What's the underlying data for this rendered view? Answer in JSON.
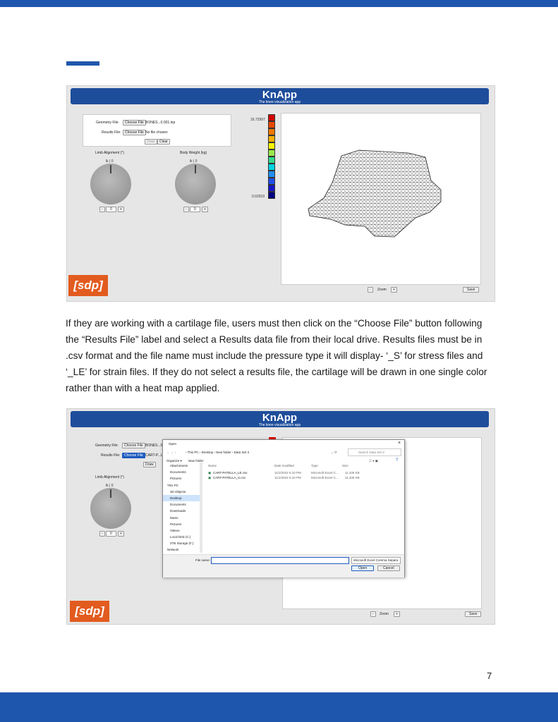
{
  "page_number": "7",
  "paragraph": "If they are working with a cartilage file, users must then click on the “Choose File” button following the “Results File” label and select a Results data file from their local drive. Results files must be in .csv format and the file name must include the pressure type it will display- ‘_S’ for stress files and ‘_LE’ for strain files. If they do not select a results file, the cartilage will be drawn in one single color rather than with a heat map applied.",
  "app": {
    "title": "KnApp",
    "subtitle": "The knee visualization app",
    "logo_text": "[sdp]",
    "geometry_label": "Geometry File:",
    "results_label": "Results File:",
    "choose_file": "Choose File",
    "draw": "Draw",
    "clear": "Clear",
    "limb_alignment": "Limb Alignment (°)",
    "body_weight": "Body Weight (kg)",
    "zoom": "Zoom",
    "minus": "-",
    "plus": "+",
    "save": "Save",
    "stepper_value": "0",
    "knob_ticks": "lk | 0"
  },
  "shot1": {
    "geometry_file": "BONES...0.001.inp",
    "results_file": "No file chosen",
    "legend_max": "16.72997",
    "legend_min": "0.02919",
    "legend_colors": [
      "#d40000",
      "#e84a00",
      "#f07800",
      "#f5b000",
      "#f5f500",
      "#9be84a",
      "#35d98a",
      "#00d4e0",
      "#1f8ff0",
      "#1f4fe8",
      "#1515c8",
      "#000080"
    ]
  },
  "shot2": {
    "geometry_file": "BONES...0(",
    "results_file": "CART-P...LE",
    "dialog": {
      "title": "Open",
      "close": "×",
      "breadcrumb": "› This PC › Desktop › New folder › Data Set 3",
      "search_placeholder": "Search Data Set 3",
      "organize": "Organize ▾",
      "new_folder": "New folder",
      "sidebar": [
        "Attachments",
        "Documents",
        "Pictures",
        "This PC",
        "3D Objects",
        "Desktop",
        "Documents",
        "Downloads",
        "Music",
        "Pictures",
        "Videos",
        "Local Disk (C:)",
        "2TB Storage (F:)",
        "Network"
      ],
      "columns": [
        "Name",
        "Date modified",
        "Type",
        "Size"
      ],
      "files": [
        {
          "name": "CART-PATELLA_LE.csv",
          "date": "11/1/2022 6:10 PM",
          "type": "Microsoft Excel C...",
          "size": "11,106 KB"
        },
        {
          "name": "CART-PATELLA_S.csv",
          "date": "11/1/2022 6:10 PM",
          "type": "Microsoft Excel C...",
          "size": "11,106 KB"
        }
      ],
      "file_name_label": "File name:",
      "file_type": "Microsoft Excel Comma Separa",
      "open": "Open",
      "cancel": "Cancel"
    }
  }
}
